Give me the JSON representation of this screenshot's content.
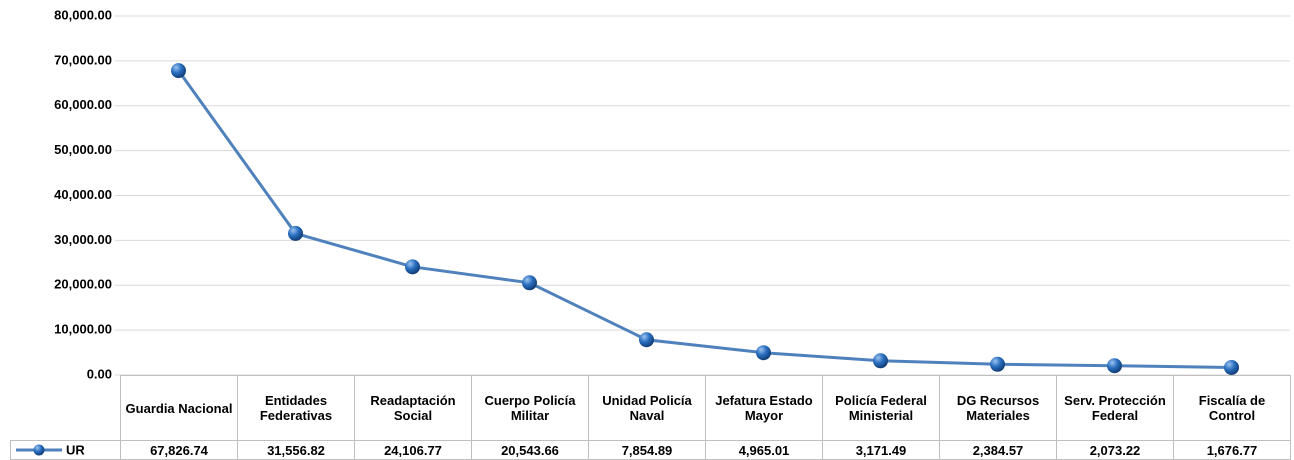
{
  "chart_data": {
    "type": "line",
    "categories": [
      "Guardia Nacional",
      "Entidades Federativas",
      "Readaptación Social",
      "Cuerpo Policía Militar",
      "Unidad Policía Naval",
      "Jefatura Estado Mayor",
      "Policía Federal Ministerial",
      "DG Recursos Materiales",
      "Serv. Protección Federal",
      "Fiscalía de Control"
    ],
    "series": [
      {
        "name": "UR",
        "color": "#4f81bd",
        "values": [
          67826.74,
          31556.82,
          24106.77,
          20543.66,
          7854.89,
          4965.01,
          3171.49,
          2384.57,
          2073.22,
          1676.77
        ],
        "value_labels": [
          "67,826.74",
          "31,556.82",
          "24,106.77",
          "20,543.66",
          "7,854.89",
          "4,965.01",
          "3,171.49",
          "2,384.57",
          "2,073.22",
          "1,676.77"
        ]
      }
    ],
    "ylim": [
      0,
      80000
    ],
    "yticks": [
      {
        "value": 0,
        "label": "0.00"
      },
      {
        "value": 10000,
        "label": "10,000.00"
      },
      {
        "value": 20000,
        "label": "20,000.00"
      },
      {
        "value": 30000,
        "label": "30,000.00"
      },
      {
        "value": 40000,
        "label": "40,000.00"
      },
      {
        "value": 50000,
        "label": "50,000.00"
      },
      {
        "value": 60000,
        "label": "60,000.00"
      },
      {
        "value": 70000,
        "label": "70,000.00"
      },
      {
        "value": 80000,
        "label": "80,000.00"
      }
    ],
    "grid": true,
    "data_table": true
  }
}
